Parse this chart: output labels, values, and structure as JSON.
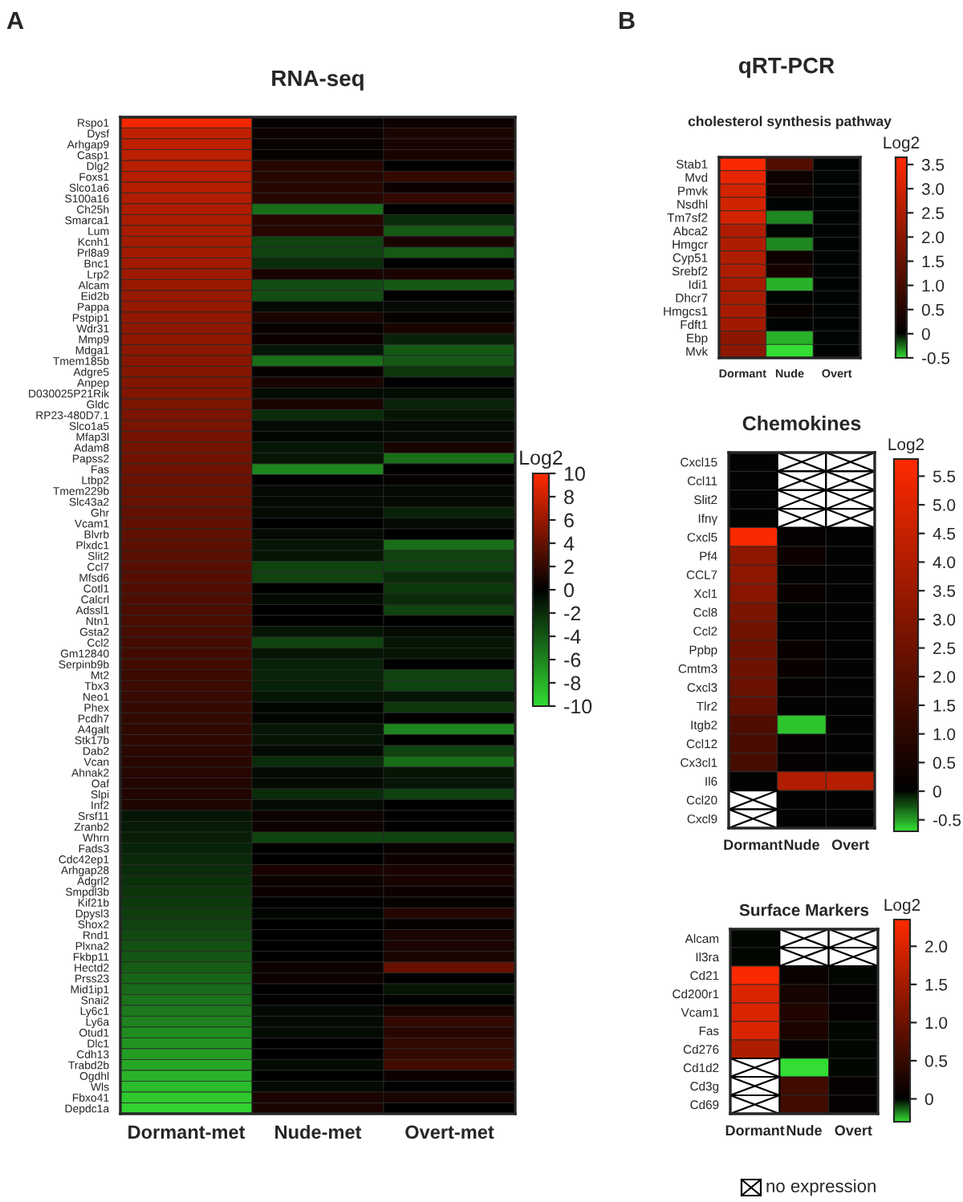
{
  "chart_data": [
    {
      "type": "heatmap",
      "title": "RNA-seq",
      "annotations": [
        "A"
      ],
      "clabel": "Log2",
      "categories": [
        "Dormant-met",
        "Nude-met",
        "Overt-met"
      ],
      "y_categories": [
        "Rspo1",
        "Dysf",
        "Arhgap9",
        "Casp1",
        "Dlg2",
        "Foxs1",
        "Slco1a6",
        "S100a16",
        "Ch25h",
        "Smarca1",
        "Lum",
        "Kcnh1",
        "Prl8a9",
        "Bnc1",
        "Lrp2",
        "Alcam",
        "Eid2b",
        "Pappa",
        "Pstpip1",
        "Wdr31",
        "Mmp9",
        "Mdga1",
        "Tmem185b",
        "Adgre5",
        "Anpep",
        "D030025P21Rik",
        "Gldc",
        "RP23-480D7.1",
        "Slco1a5",
        "Mfap3l",
        "Adam8",
        "Papss2",
        "Fas",
        "Ltbp2",
        "Tmem229b",
        "Slc43a2",
        "Ghr",
        "Vcam1",
        "Blvrb",
        "Plxdc1",
        "Slit2",
        "Ccl7",
        "Mfsd6",
        "Cotl1",
        "Calcrl",
        "Adssl1",
        "Ntn1",
        "Gsta2",
        "Ccl2",
        "Gm12840",
        "Serpinb9b",
        "Mt2",
        "Tbx3",
        "Neo1",
        "Phex",
        "Pcdh7",
        "A4galt",
        "Stk17b",
        "Dab2",
        "Vcan",
        "Ahnak2",
        "Oaf",
        "Slpi",
        "Inf2",
        "Srsf11",
        "Zranb2",
        "Whrn",
        "Fads3",
        "Cdc42ep1",
        "Arhgap28",
        "Adgrl2",
        "Smpdl3b",
        "Kif21b",
        "Dpysl3",
        "Shox2",
        "Rnd1",
        "Plxna2",
        "Fkbp11",
        "Hectd2",
        "Prss23",
        "Mid1ip1",
        "Snai2",
        "Ly6c1",
        "Ly6a",
        "Otud1",
        "Dlc1",
        "Cdh13",
        "Trabd2b",
        "Ogdhl",
        "Wls",
        "Fbxo41",
        "Depdc1a"
      ],
      "cells": [
        [
          9.5,
          0.2,
          0.5
        ],
        [
          7.5,
          0.5,
          1
        ],
        [
          7.4,
          0.3,
          1
        ],
        [
          7.3,
          0.3,
          1
        ],
        [
          7.2,
          1.5,
          0
        ],
        [
          7.1,
          1.5,
          2
        ],
        [
          7.0,
          1.5,
          0.5
        ],
        [
          6.9,
          1.5,
          2
        ],
        [
          6.8,
          -5,
          0
        ],
        [
          6.6,
          1.5,
          -2
        ],
        [
          6.5,
          1.5,
          -4
        ],
        [
          6.4,
          -3,
          1
        ],
        [
          6.3,
          -3,
          -4
        ],
        [
          6.2,
          -2,
          0
        ],
        [
          6.1,
          1,
          1
        ],
        [
          6.0,
          -3.5,
          -4
        ],
        [
          5.9,
          -3.5,
          0
        ],
        [
          5.8,
          -0.5,
          -0.5
        ],
        [
          5.7,
          1,
          0.3
        ],
        [
          5.6,
          0.3,
          1
        ],
        [
          5.5,
          0.5,
          -1.5
        ],
        [
          5.4,
          -1,
          -4
        ],
        [
          5.3,
          -5,
          -4
        ],
        [
          5.2,
          0.3,
          -2.5
        ],
        [
          5.1,
          1,
          0
        ],
        [
          5.0,
          -0.5,
          -0.5
        ],
        [
          4.9,
          1,
          -1.5
        ],
        [
          4.8,
          -2,
          -1
        ],
        [
          4.7,
          -0.5,
          -0.5
        ],
        [
          4.6,
          -0.3,
          -0.5
        ],
        [
          4.5,
          -1,
          1
        ],
        [
          4.4,
          -1,
          -5
        ],
        [
          4.3,
          -6,
          0
        ],
        [
          4.2,
          0,
          0.2
        ],
        [
          4.1,
          -0.5,
          -0.5
        ],
        [
          4.0,
          -0.5,
          -0.5
        ],
        [
          3.9,
          -0.5,
          -1.5
        ],
        [
          3.8,
          0,
          -0.5
        ],
        [
          3.7,
          -0.5,
          0
        ],
        [
          3.6,
          -1,
          -5
        ],
        [
          3.5,
          -1,
          -3
        ],
        [
          3.4,
          -3,
          -3
        ],
        [
          3.3,
          -3,
          -2
        ],
        [
          3.2,
          0,
          -2.5
        ],
        [
          3.1,
          -0.5,
          -2
        ],
        [
          3.0,
          0,
          -3
        ],
        [
          2.9,
          0,
          0
        ],
        [
          2.8,
          -1,
          -0.5
        ],
        [
          2.7,
          -3,
          -1
        ],
        [
          2.6,
          -1,
          -1
        ],
        [
          2.5,
          -1.5,
          0
        ],
        [
          2.4,
          -1.5,
          -3
        ],
        [
          2.3,
          -1.5,
          -3
        ],
        [
          2.2,
          -1,
          -1
        ],
        [
          2.1,
          -0.3,
          -2.5
        ],
        [
          2.0,
          -0.3,
          0
        ],
        [
          1.9,
          -1,
          -6
        ],
        [
          1.8,
          -1,
          0
        ],
        [
          1.7,
          -0.5,
          -3
        ],
        [
          1.6,
          -2,
          -5
        ],
        [
          1.5,
          -0.5,
          -1
        ],
        [
          1.4,
          -0.5,
          -1
        ],
        [
          1.3,
          -2,
          -3
        ],
        [
          1.2,
          -0.5,
          0
        ],
        [
          -1.0,
          0.5,
          0
        ],
        [
          -1.2,
          0.5,
          0
        ],
        [
          -1.4,
          -3,
          -3
        ],
        [
          -1.6,
          0,
          0.3
        ],
        [
          -1.8,
          0,
          0.5
        ],
        [
          -2.0,
          1,
          1
        ],
        [
          -2.2,
          0.5,
          1
        ],
        [
          -2.4,
          0.5,
          0.5
        ],
        [
          -2.6,
          0,
          0.3
        ],
        [
          -2.8,
          -0.3,
          1.5
        ],
        [
          -3.0,
          0,
          0.3
        ],
        [
          -3.3,
          0,
          1
        ],
        [
          -3.6,
          0,
          1
        ],
        [
          -3.9,
          0,
          1
        ],
        [
          -4.2,
          0.5,
          4
        ],
        [
          -4.5,
          0.5,
          0
        ],
        [
          -4.8,
          0,
          -1
        ],
        [
          -5.1,
          0,
          0
        ],
        [
          -5.5,
          -0.5,
          1
        ],
        [
          -5.9,
          -0.5,
          2
        ],
        [
          -6.3,
          -0.5,
          1.5
        ],
        [
          -6.7,
          0,
          2
        ],
        [
          -7.1,
          0,
          2
        ],
        [
          -7.5,
          -0.5,
          2.5
        ],
        [
          -8.0,
          0,
          0.5
        ],
        [
          -8.5,
          -0.5,
          0
        ],
        [
          -9.0,
          1,
          1
        ],
        [
          -9.5,
          1,
          0
        ]
      ],
      "clim": [
        -10,
        10
      ],
      "cticks": [
        -10,
        -8,
        -6,
        -4,
        -2,
        0,
        2,
        4,
        6,
        8,
        10
      ]
    },
    {
      "type": "heatmap",
      "title": "cholesterol synthesis pathway",
      "annotations": [
        "B",
        "qRT-PCR"
      ],
      "clabel": "Log2",
      "categories": [
        "Dormant",
        "Nude",
        "Overt"
      ],
      "y_categories": [
        "Stab1",
        "Mvd",
        "Pmvk",
        "Nsdhl",
        "Tm7sf2",
        "Abca2",
        "Hmgcr",
        "Cyp51",
        "Srebf2",
        "Idi1",
        "Dhcr7",
        "Hmgcs1",
        "Fdft1",
        "Ebp",
        "Mvk"
      ],
      "cells": [
        [
          3.6,
          1.2,
          0
        ],
        [
          3.3,
          0.2,
          0
        ],
        [
          3.0,
          0.2,
          0
        ],
        [
          3.0,
          0,
          0
        ],
        [
          3.0,
          -0.3,
          0
        ],
        [
          2.5,
          0,
          0
        ],
        [
          2.5,
          -0.3,
          0
        ],
        [
          2.5,
          0.2,
          0
        ],
        [
          2.5,
          0.3,
          0
        ],
        [
          2.4,
          -0.4,
          0
        ],
        [
          2.4,
          0,
          0
        ],
        [
          2.4,
          0.1,
          0
        ],
        [
          2.3,
          0,
          0
        ],
        [
          2.0,
          -0.4,
          0
        ],
        [
          2.0,
          -0.5,
          0
        ]
      ],
      "clim": [
        -0.5,
        3.65
      ],
      "cticks": [
        -0.5,
        0,
        0.5,
        {
          "value": 1,
          "label": "1.0"
        },
        1.5,
        {
          "value": 2,
          "label": "2.0"
        },
        2.5,
        {
          "value": 3,
          "label": "3.0"
        },
        3.5
      ]
    },
    {
      "type": "heatmap",
      "title": "Chemokines",
      "clabel": "Log2",
      "categories": [
        "Dormant",
        "Nude",
        "Overt"
      ],
      "y_categories": [
        "Cxcl15",
        "Ccl11",
        "Slit2",
        "Ifnγ",
        "Cxcl5",
        "Pf4",
        "CCL7",
        "Xcl1",
        "Ccl8",
        "Ccl2",
        "Ppbp",
        "Cmtm3",
        "Cxcl3",
        "Tlr2",
        "Itgb2",
        "Ccl12",
        "Cx3cl1",
        "Il6",
        "Ccl20",
        "Cxcl9"
      ],
      "cells": [
        [
          0,
          null,
          null
        ],
        [
          0,
          null,
          null
        ],
        [
          0,
          null,
          null
        ],
        [
          0,
          null,
          null
        ],
        [
          5.7,
          0.1,
          0
        ],
        [
          3.2,
          0.3,
          0
        ],
        [
          3.2,
          0,
          0
        ],
        [
          3.1,
          0.2,
          0
        ],
        [
          2.8,
          0,
          0
        ],
        [
          2.6,
          0,
          0
        ],
        [
          2.5,
          0.2,
          0
        ],
        [
          2.5,
          0.2,
          0
        ],
        [
          2.4,
          0.1,
          0
        ],
        [
          2.2,
          0,
          0
        ],
        [
          1.8,
          -0.6,
          0
        ],
        [
          1.7,
          0.1,
          0
        ],
        [
          1.6,
          0.1,
          0
        ],
        [
          0,
          4.0,
          4.1
        ],
        [
          null,
          0,
          0
        ],
        [
          null,
          0,
          0
        ]
      ],
      "clim": [
        -0.7,
        5.8
      ],
      "cticks": [
        -0.5,
        0,
        0.5,
        {
          "value": 1,
          "label": "1.0"
        },
        1.5,
        {
          "value": 2,
          "label": "2.0"
        },
        2.5,
        {
          "value": 3,
          "label": "3.0"
        },
        3.5,
        {
          "value": 4,
          "label": "4.0"
        },
        4.5,
        {
          "value": 5,
          "label": "5.0"
        },
        5.5
      ]
    },
    {
      "type": "heatmap",
      "title": "Surface Markers",
      "annotations": [
        "no expression"
      ],
      "clabel": "Log2",
      "categories": [
        "Dormant",
        "Nude",
        "Overt"
      ],
      "y_categories": [
        "Alcam",
        "Il3ra",
        "Cd21",
        "Cd200r1",
        "Vcam1",
        "Fas",
        "Cd276",
        "Cd1d2",
        "Cd3g",
        "Cd69"
      ],
      "cells": [
        [
          0,
          null,
          null
        ],
        [
          0,
          null,
          null
        ],
        [
          2.3,
          0.1,
          0
        ],
        [
          2.0,
          0.2,
          0.05
        ],
        [
          2.0,
          0.3,
          0.05
        ],
        [
          2.0,
          0.25,
          0
        ],
        [
          1.6,
          0.05,
          0
        ],
        [
          null,
          -0.3,
          0
        ],
        [
          null,
          0.6,
          0.05
        ],
        [
          null,
          0.6,
          0.05
        ]
      ],
      "clim": [
        -0.3,
        2.35
      ],
      "cticks": [
        0,
        0.5,
        {
          "value": 1,
          "label": "1.0"
        },
        1.5,
        {
          "value": 2,
          "label": "2.0"
        }
      ]
    }
  ]
}
